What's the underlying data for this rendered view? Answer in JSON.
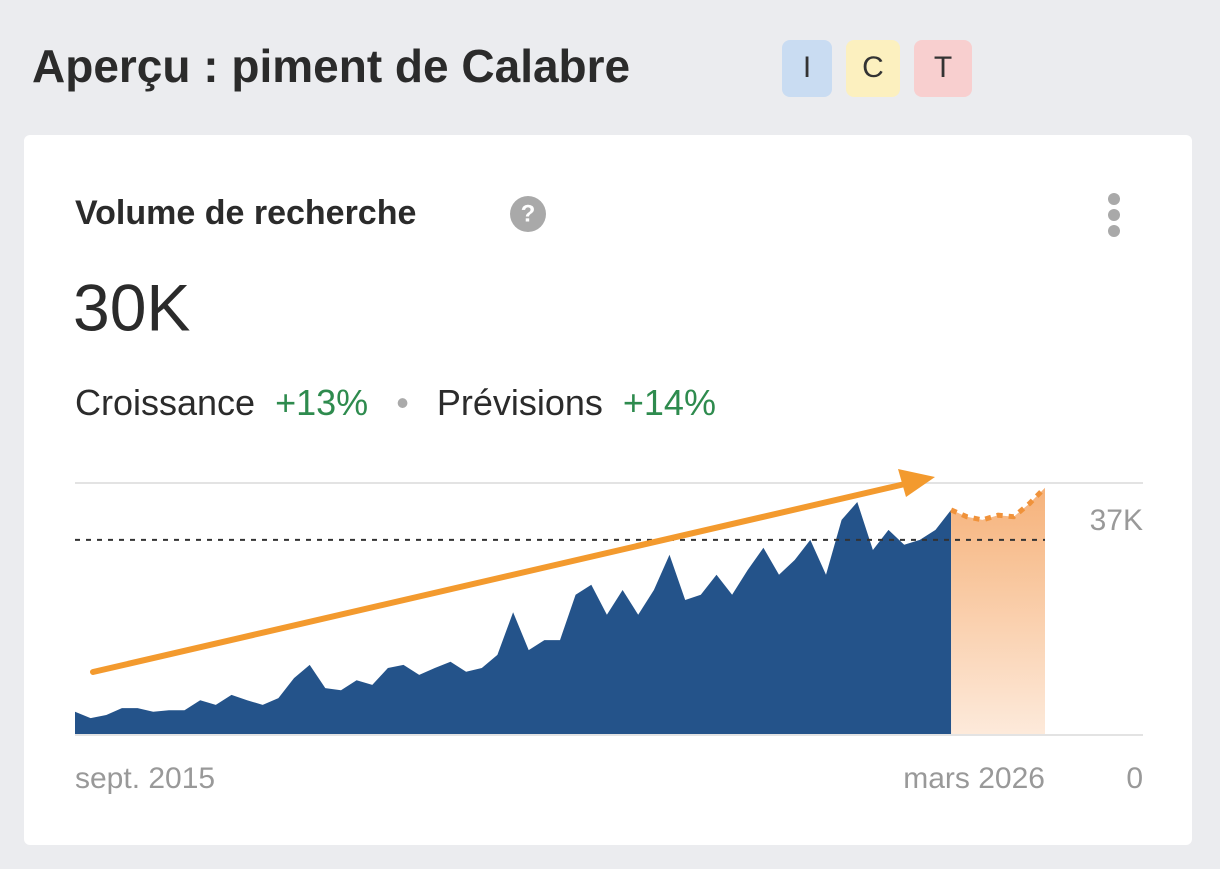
{
  "header": {
    "title": "Aperçu : piment de Calabre",
    "badges": [
      "I",
      "C",
      "T"
    ]
  },
  "card": {
    "title": "Volume de recherche",
    "help": "?",
    "value": "30K",
    "growth_label": "Croissance",
    "growth": "+13%",
    "forecast_label": "Prévisions",
    "forecast": "+14%"
  },
  "chart_data": {
    "type": "area",
    "categories": [
      "sept. 2015",
      null,
      null,
      null,
      null,
      null,
      null,
      null,
      null,
      null,
      null,
      null,
      null,
      null,
      null,
      null,
      null,
      null,
      null,
      null,
      null,
      null,
      null,
      null,
      null,
      null,
      null,
      null,
      null,
      null,
      null,
      null,
      null,
      null,
      null,
      null,
      null,
      null,
      null,
      null,
      null,
      null,
      null,
      null,
      null,
      null,
      null,
      null,
      null,
      null,
      null,
      null,
      null,
      null,
      null,
      null,
      null,
      null,
      null,
      null,
      null,
      null,
      "mars 2026"
    ],
    "series": [
      {
        "color": "#24538a",
        "values": [
          4400,
          3200,
          3800,
          5100,
          5100,
          4400,
          4700,
          4700,
          6600,
          5700,
          7600,
          6600,
          5700,
          7000,
          10800,
          13300,
          8900,
          8500,
          10400,
          9500,
          12700,
          13300,
          11400,
          12700,
          13900,
          12000,
          12700,
          15200,
          23300,
          16100,
          18000,
          18000,
          26600,
          28500,
          22800,
          27500,
          22800,
          27500,
          34200,
          25600,
          26600,
          30400,
          26600,
          31300,
          35500,
          30400,
          33200,
          37000,
          30400,
          40800,
          44200,
          35100,
          38900,
          36100,
          37000,
          38900,
          42700,
          null,
          null,
          null,
          null,
          null,
          null
        ]
      },
      {
        "color": "#f0923a",
        "forecast": true,
        "values": [
          null,
          null,
          null,
          null,
          null,
          null,
          null,
          null,
          null,
          null,
          null,
          null,
          null,
          null,
          null,
          null,
          null,
          null,
          null,
          null,
          null,
          null,
          null,
          null,
          null,
          null,
          null,
          null,
          null,
          null,
          null,
          null,
          null,
          null,
          null,
          null,
          null,
          null,
          null,
          null,
          null,
          null,
          null,
          null,
          null,
          null,
          null,
          null,
          null,
          null,
          null,
          null,
          null,
          null,
          null,
          null,
          42700,
          41400,
          40800,
          41700,
          41400,
          43900,
          46900
        ]
      }
    ],
    "ylim": [
      0,
      47800
    ],
    "yticks": [
      {
        "value": 0,
        "label": "0"
      },
      {
        "value": 37000,
        "label": "37K"
      }
    ],
    "y_axis_side": "right"
  }
}
